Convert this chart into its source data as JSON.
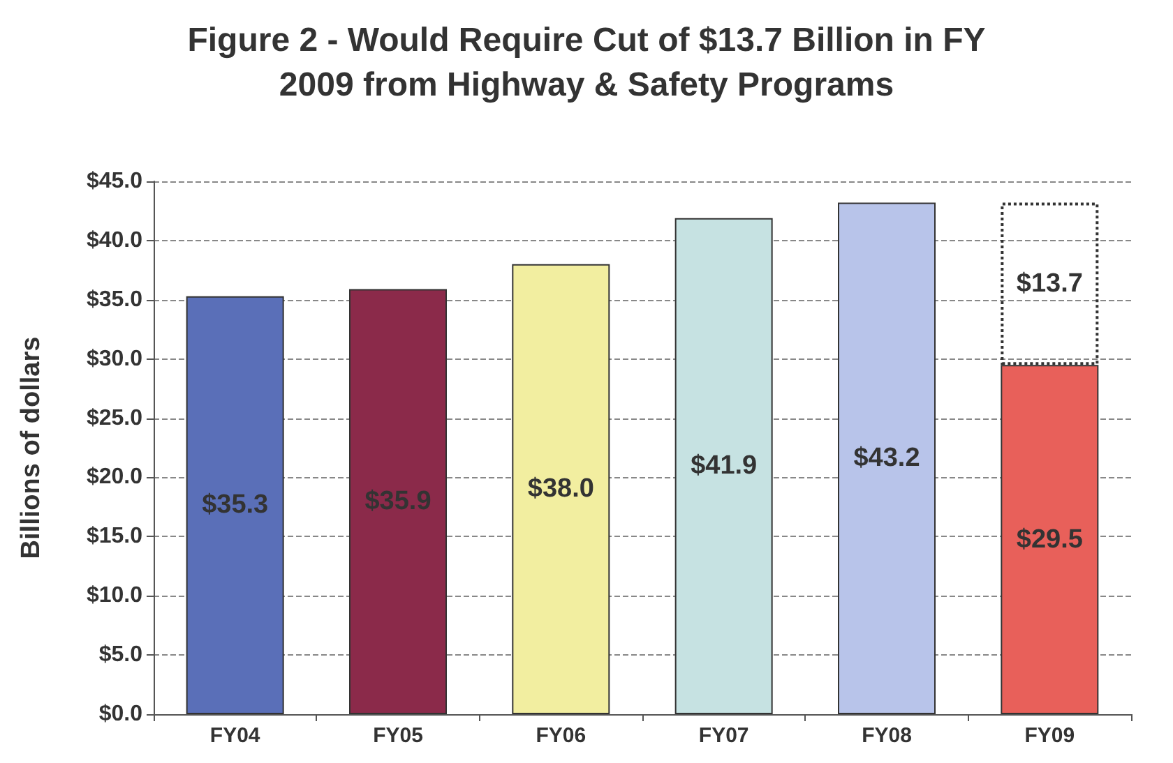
{
  "chart_data": {
    "type": "bar",
    "title": "Figure 2 - Would Require Cut of $13.7 Billion in FY\n2009 from Highway & Safety Programs",
    "ylabel": "Billions of dollars",
    "categories": [
      "FY04",
      "FY05",
      "FY06",
      "FY07",
      "FY08",
      "FY09"
    ],
    "stacked": true,
    "series": [
      {
        "colors": [
          "#5a6fb8",
          "#8b2a4a",
          "#f2eea0",
          "#c6e2e2",
          "#b8c4ea",
          "#e8605a"
        ],
        "values": [
          35.3,
          35.9,
          38.0,
          41.9,
          43.2,
          29.5
        ],
        "value_labels": [
          "$35.3",
          "$35.9",
          "$38.0",
          "$41.9",
          "$43.2",
          "$29.5"
        ]
      },
      {
        "color": "#333333",
        "line_style": "dotted",
        "values": [
          null,
          null,
          null,
          null,
          null,
          13.7
        ],
        "value_labels": [
          null,
          null,
          null,
          null,
          null,
          "$13.7"
        ]
      }
    ],
    "ylim": [
      0,
      45
    ],
    "yticks": [
      {
        "value": 0,
        "label": "$0.0"
      },
      {
        "value": 5,
        "label": "$5.0"
      },
      {
        "value": 10,
        "label": "$10.0"
      },
      {
        "value": 15,
        "label": "$15.0"
      },
      {
        "value": 20,
        "label": "$20.0"
      },
      {
        "value": 25,
        "label": "$25.0"
      },
      {
        "value": 30,
        "label": "$30.0"
      },
      {
        "value": 35,
        "label": "$35.0"
      },
      {
        "value": 40,
        "label": "$40.0"
      },
      {
        "value": 45,
        "label": "$45.0"
      }
    ],
    "grid": "y"
  }
}
